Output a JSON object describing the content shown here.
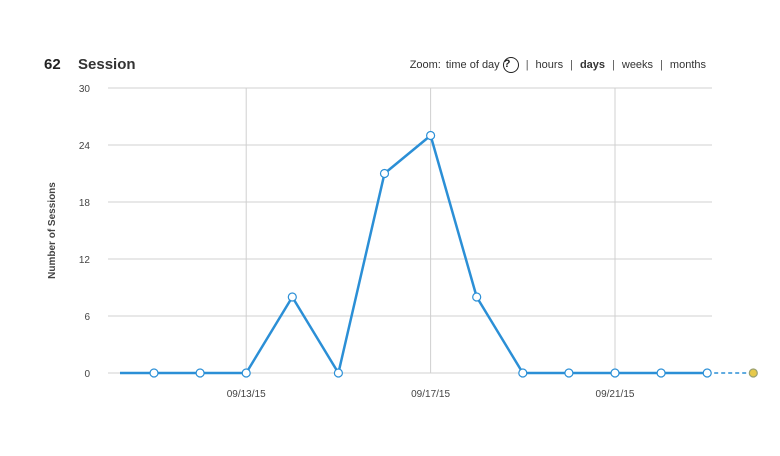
{
  "header": {
    "count": "62",
    "title": "Session",
    "zoom_label": "Zoom:",
    "zoom_options": [
      "time of day",
      "hours",
      "days",
      "weeks",
      "months"
    ],
    "zoom_active": "days",
    "help_glyph": "?"
  },
  "colors": {
    "line": "#2b8fd6",
    "marker_fill": "#ffffff",
    "grid": "#d0d0d0",
    "last_point": "#e7c94a"
  },
  "chart_data": {
    "type": "line",
    "title": "",
    "xlabel": "",
    "ylabel": "Number of Sessions",
    "ylim": [
      0,
      30
    ],
    "yticks": [
      0,
      6,
      12,
      18,
      24,
      30
    ],
    "xtick_labels": [
      "09/13/15",
      "09/17/15",
      "09/21/15"
    ],
    "grid": true,
    "series": [
      {
        "x": [
          "09/11/15",
          "09/12/15",
          "09/13/15",
          "09/14/15",
          "09/15/15",
          "09/16/15",
          "09/17/15",
          "09/18/15",
          "09/19/15",
          "09/20/15",
          "09/21/15",
          "09/22/15",
          "09/23/15",
          "09/24/15"
        ],
        "values": [
          0,
          0,
          0,
          8,
          0,
          21,
          25,
          8,
          0,
          0,
          0,
          0,
          0,
          0
        ],
        "dashed_last_segment": true
      }
    ]
  }
}
